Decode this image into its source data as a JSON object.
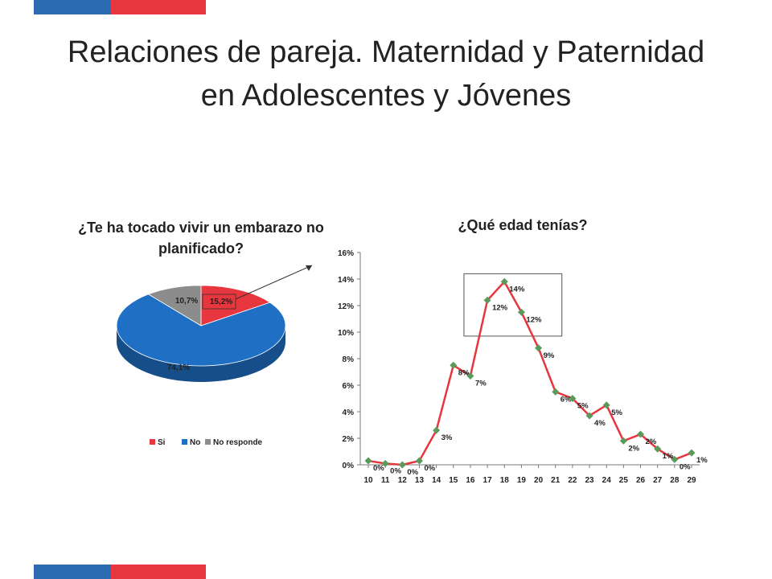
{
  "slide": {
    "title_line1": "Relaciones de pareja. Maternidad y Paternidad",
    "title_line2": "en Adolescentes y Jóvenes",
    "bar_colors": [
      "#2b6cb0",
      "#e8363f"
    ]
  },
  "chart_data": [
    {
      "type": "pie",
      "title": "¿Te ha tocado vivir un embarazo no planificado?",
      "slices": [
        {
          "name": "Si",
          "value": 15.2,
          "label": "15,2%",
          "color": "#e8363f"
        },
        {
          "name": "No",
          "value": 74.1,
          "label": "74,1%",
          "color": "#1f6fc5"
        },
        {
          "name": "No responde",
          "value": 10.7,
          "label": "10,7%",
          "color": "#8c8c8c"
        }
      ],
      "legend": [
        "Si",
        "No",
        "No responde"
      ],
      "legend_position": "bottom"
    },
    {
      "type": "line",
      "title": "¿Qué edad tenías?",
      "x": [
        "10",
        "11",
        "12",
        "13",
        "14",
        "15",
        "16",
        "17",
        "18",
        "19",
        "20",
        "21",
        "22",
        "23",
        "24",
        "25",
        "26",
        "27",
        "28",
        "29"
      ],
      "values": [
        0.3,
        0.1,
        0.0,
        0.3,
        2.6,
        7.5,
        6.7,
        12.4,
        13.8,
        11.5,
        8.8,
        5.5,
        5.0,
        3.7,
        4.5,
        1.8,
        2.3,
        1.2,
        0.4,
        0.9
      ],
      "data_labels": [
        "0%",
        "0%",
        "0%",
        "0%",
        "3%",
        "8%",
        "7%",
        "12%",
        "14%",
        "12%",
        "9%",
        "6%",
        "5%",
        "4%",
        "5%",
        "2%",
        "2%",
        "1%",
        "0%",
        "1%"
      ],
      "y_ticks": [
        "0%",
        "2%",
        "4%",
        "6%",
        "8%",
        "10%",
        "12%",
        "14%",
        "16%"
      ],
      "ylim": [
        0,
        16
      ],
      "line_color": "#e8363f",
      "marker_color": "#5a9a5a",
      "grid": false
    }
  ]
}
